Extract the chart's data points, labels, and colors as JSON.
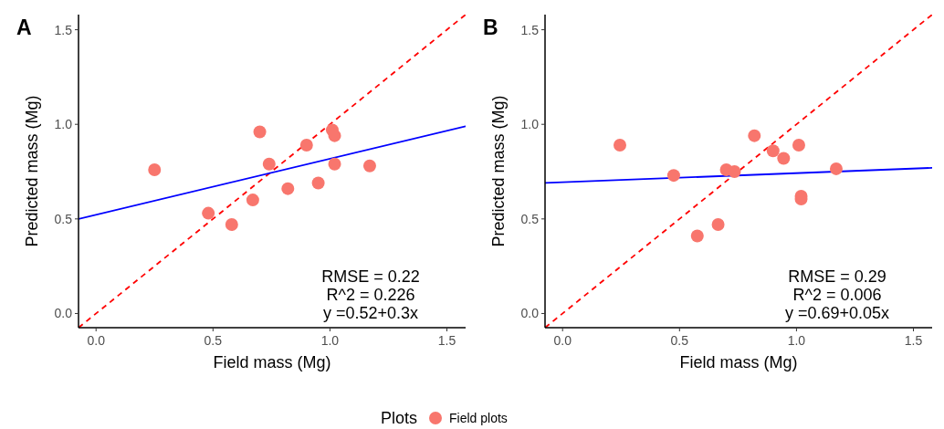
{
  "chart_data": [
    {
      "type": "scatter",
      "title": "A",
      "xlabel": "Field mass (Mg)",
      "ylabel": "Predicted mass (Mg)",
      "legend_title": "Plots",
      "legend": "bottom",
      "grid": false,
      "xlim": [
        -0.075,
        1.58
      ],
      "ylim": [
        -0.075,
        1.58
      ],
      "xticks": [
        {
          "value": 0,
          "label": "0.0"
        },
        {
          "value": 0.5,
          "label": "0.5"
        },
        {
          "value": 1,
          "label": "1.0"
        },
        {
          "value": 1.5,
          "label": "1.5"
        }
      ],
      "yticks": [
        {
          "value": 0,
          "label": "0.0"
        },
        {
          "value": 0.5,
          "label": "0.5"
        },
        {
          "value": 1,
          "label": "1.0"
        },
        {
          "value": 1.5,
          "label": "1.5"
        }
      ],
      "annotations": [
        "RMSE = 0.22",
        "R^2 = 0.226",
        "y =0.52+0.3x"
      ],
      "series": [
        {
          "type": "line",
          "color": "#ff0000",
          "line_style": "dashed",
          "x": [
            -0.075,
            1.58
          ],
          "values": [
            -0.075,
            1.58
          ]
        },
        {
          "type": "line",
          "color": "#0000ff",
          "line_style": "solid",
          "x": [
            -0.075,
            1.58
          ],
          "values": [
            0.5,
            0.99
          ]
        },
        {
          "name": "Field plots",
          "color": "#f8766d",
          "x": [
            0.25,
            0.48,
            0.58,
            0.67,
            0.7,
            0.74,
            0.82,
            0.9,
            0.95,
            1.01,
            1.02,
            1.02,
            1.17
          ],
          "values": [
            0.76,
            0.53,
            0.47,
            0.6,
            0.96,
            0.79,
            0.66,
            0.89,
            0.69,
            0.97,
            0.94,
            0.79,
            0.78
          ]
        }
      ]
    },
    {
      "type": "scatter",
      "title": "B",
      "xlabel": "Field mass (Mg)",
      "ylabel": "Predicted mass (Mg)",
      "grid": false,
      "xlim": [
        -0.075,
        1.58
      ],
      "ylim": [
        -0.075,
        1.58
      ],
      "xticks": [
        {
          "value": 0,
          "label": "0.0"
        },
        {
          "value": 0.5,
          "label": "0.5"
        },
        {
          "value": 1,
          "label": "1.0"
        },
        {
          "value": 1.5,
          "label": "1.5"
        }
      ],
      "yticks": [
        {
          "value": 0,
          "label": "0.0"
        },
        {
          "value": 0.5,
          "label": "0.5"
        },
        {
          "value": 1,
          "label": "1.0"
        },
        {
          "value": 1.5,
          "label": "1.5"
        }
      ],
      "annotations": [
        "RMSE = 0.29",
        "R^2 = 0.006",
        "y =0.69+0.05x"
      ],
      "series": [
        {
          "type": "line",
          "color": "#ff0000",
          "line_style": "dashed",
          "x": [
            -0.075,
            1.58
          ],
          "values": [
            -0.075,
            1.58
          ]
        },
        {
          "type": "line",
          "color": "#0000ff",
          "line_style": "solid",
          "x": [
            -0.075,
            1.58
          ],
          "values": [
            0.69,
            0.77
          ]
        },
        {
          "color": "#f8766d",
          "x": [
            0.245,
            0.475,
            0.576,
            0.665,
            0.7,
            0.735,
            0.82,
            0.9,
            0.945,
            1.01,
            1.02,
            1.02,
            1.17
          ],
          "values": [
            0.89,
            0.73,
            0.41,
            0.47,
            0.76,
            0.75,
            0.94,
            0.86,
            0.82,
            0.89,
            0.62,
            0.605,
            0.765
          ]
        }
      ]
    }
  ]
}
